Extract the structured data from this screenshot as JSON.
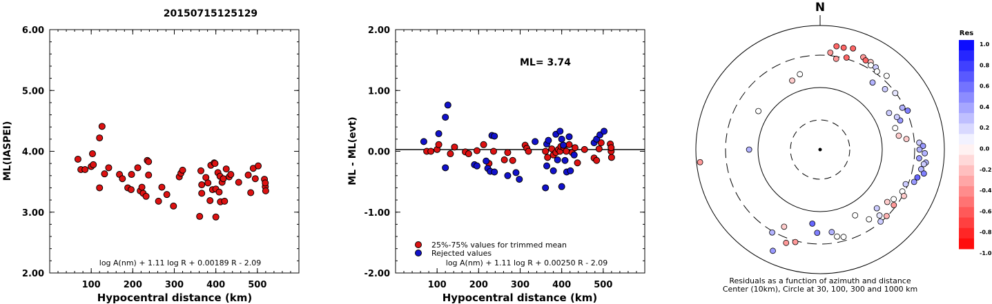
{
  "title": "20150715125129",
  "chart_data": [
    {
      "type": "scatter",
      "ylabel": "ML(IASPEI)",
      "xlabel": "Hypocentral distance (km)",
      "xlim": [
        0,
        600
      ],
      "ylim": [
        2.0,
        6.0
      ],
      "xticks": [
        "100",
        "200",
        "300",
        "400",
        "500"
      ],
      "yticks": [
        "2.00",
        "3.00",
        "4.00",
        "5.00",
        "6.00"
      ],
      "formula": "log A(nm) + 1.11 log R + 0.00189 R - 2.09",
      "color": "#dd1111",
      "points": [
        [
          68,
          3.87
        ],
        [
          75,
          3.7
        ],
        [
          85,
          3.7
        ],
        [
          100,
          3.75
        ],
        [
          103,
          3.96
        ],
        [
          105,
          3.78
        ],
        [
          120,
          4.22
        ],
        [
          126,
          4.41
        ],
        [
          120,
          3.4
        ],
        [
          132,
          3.63
        ],
        [
          142,
          3.73
        ],
        [
          168,
          3.62
        ],
        [
          175,
          3.55
        ],
        [
          188,
          3.4
        ],
        [
          196,
          3.37
        ],
        [
          197,
          3.62
        ],
        [
          212,
          3.73
        ],
        [
          218,
          3.35
        ],
        [
          222,
          3.41
        ],
        [
          225,
          3.31
        ],
        [
          232,
          3.26
        ],
        [
          235,
          3.85
        ],
        [
          238,
          3.83
        ],
        [
          238,
          3.61
        ],
        [
          262,
          3.18
        ],
        [
          270,
          3.41
        ],
        [
          282,
          3.29
        ],
        [
          298,
          3.1
        ],
        [
          312,
          3.58
        ],
        [
          316,
          3.64
        ],
        [
          320,
          3.69
        ],
        [
          361,
          2.93
        ],
        [
          364,
          3.68
        ],
        [
          366,
          3.45
        ],
        [
          366,
          3.31
        ],
        [
          376,
          3.57
        ],
        [
          381,
          3.48
        ],
        [
          386,
          3.19
        ],
        [
          388,
          3.77
        ],
        [
          392,
          3.37
        ],
        [
          396,
          3.81
        ],
        [
          398,
          3.8
        ],
        [
          400,
          3.38
        ],
        [
          400,
          2.92
        ],
        [
          405,
          3.65
        ],
        [
          408,
          3.33
        ],
        [
          410,
          3.59
        ],
        [
          411,
          3.17
        ],
        [
          415,
          3.49
        ],
        [
          418,
          3.55
        ],
        [
          421,
          3.18
        ],
        [
          425,
          3.71
        ],
        [
          432,
          3.58
        ],
        [
          436,
          3.62
        ],
        [
          455,
          3.49
        ],
        [
          478,
          3.61
        ],
        [
          484,
          3.32
        ],
        [
          490,
          3.72
        ],
        [
          495,
          3.55
        ],
        [
          502,
          3.76
        ],
        [
          517,
          3.54
        ],
        [
          519,
          3.42
        ],
        [
          520,
          3.35
        ],
        [
          519,
          3.48
        ]
      ]
    },
    {
      "type": "scatter",
      "ylabel": "ML - ML(evt)",
      "xlabel": "Hypocentral distance (km)",
      "xlim": [
        0,
        600
      ],
      "ylim": [
        -2.0,
        2.0
      ],
      "xticks": [
        "100",
        "200",
        "300",
        "400",
        "500"
      ],
      "yticks": [
        "-2.00",
        "-1.00",
        "0.00",
        "1.00",
        "2.00"
      ],
      "formula": "log A(nm) + 1.11 log R + 0.00250 R - 2.09",
      "annotation": "ML= 3.74",
      "legend": [
        {
          "label": "25%-75% values for trimmed mean",
          "color": "#dd1111"
        },
        {
          "label": "Rejected values",
          "color": "#1111cc"
        }
      ],
      "series": [
        {
          "name": "25%-75% values for trimmed mean",
          "color": "#dd1111",
          "points": [
            [
              75,
              0.0
            ],
            [
              85,
              0.0
            ],
            [
              100,
              0.03
            ],
            [
              104,
              0.11
            ],
            [
              132,
              -0.04
            ],
            [
              142,
              0.07
            ],
            [
              168,
              -0.01
            ],
            [
              176,
              -0.04
            ],
            [
              196,
              0.01
            ],
            [
              212,
              0.11
            ],
            [
              225,
              -0.2
            ],
            [
              236,
              0.0
            ],
            [
              262,
              -0.14
            ],
            [
              270,
              -0.02
            ],
            [
              282,
              -0.15
            ],
            [
              312,
              0.1
            ],
            [
              316,
              0.05
            ],
            [
              320,
              0.0
            ],
            [
              361,
              0.0
            ],
            [
              366,
              -0.1
            ],
            [
              376,
              0.04
            ],
            [
              380,
              -0.06
            ],
            [
              386,
              -0.02
            ],
            [
              392,
              0.03
            ],
            [
              396,
              0.0
            ],
            [
              398,
              0.08
            ],
            [
              405,
              0.06
            ],
            [
              411,
              0.0
            ],
            [
              418,
              0.11
            ],
            [
              425,
              -0.02
            ],
            [
              432,
              0.06
            ],
            [
              438,
              -0.19
            ],
            [
              455,
              0.03
            ],
            [
              478,
              -0.11
            ],
            [
              484,
              -0.15
            ],
            [
              490,
              0.04
            ],
            [
              495,
              0.14
            ],
            [
              517,
              0.12
            ],
            [
              519,
              0.0
            ],
            [
              520,
              -0.1
            ],
            [
              519,
              0.06
            ]
          ]
        },
        {
          "name": "Rejected values",
          "color": "#1111cc",
          "points": [
            [
              68,
              0.16
            ],
            [
              104,
              0.29
            ],
            [
              120,
              0.56
            ],
            [
              126,
              0.76
            ],
            [
              120,
              -0.27
            ],
            [
              190,
              -0.22
            ],
            [
              196,
              -0.24
            ],
            [
              218,
              -0.16
            ],
            [
              222,
              -0.28
            ],
            [
              228,
              -0.33
            ],
            [
              232,
              0.26
            ],
            [
              238,
              0.25
            ],
            [
              238,
              -0.34
            ],
            [
              270,
              -0.4
            ],
            [
              290,
              -0.35
            ],
            [
              298,
              -0.46
            ],
            [
              336,
              0.16
            ],
            [
              361,
              -0.6
            ],
            [
              364,
              0.12
            ],
            [
              364,
              -0.24
            ],
            [
              368,
              0.18
            ],
            [
              380,
              -0.32
            ],
            [
              386,
              0.28
            ],
            [
              390,
              -0.14
            ],
            [
              396,
              0.33
            ],
            [
              400,
              0.2
            ],
            [
              400,
              -0.58
            ],
            [
              404,
              0.1
            ],
            [
              408,
              -0.15
            ],
            [
              412,
              -0.34
            ],
            [
              418,
              0.24
            ],
            [
              421,
              -0.32
            ],
            [
              430,
              -0.06
            ],
            [
              478,
              0.14
            ],
            [
              484,
              0.2
            ],
            [
              492,
              0.27
            ],
            [
              502,
              0.33
            ]
          ]
        }
      ]
    },
    {
      "type": "scatter",
      "subtype": "polar",
      "north_label": "N",
      "caption_line1": "Residuals as a function of azimuth and distance",
      "caption_line2": "Center (10km), Circle at 30, 100, 300 and 1000 km",
      "colorbar_title": "Res",
      "colorbar_ticks": [
        "1.0",
        "0.8",
        "0.6",
        "0.4",
        "0.2",
        "0.0",
        "-0.2",
        "-0.4",
        "-0.6",
        "-0.8",
        "-1.0"
      ],
      "colorbar_range": [
        -1.0,
        1.0
      ],
      "points_az_dist_res": [
        [
          9,
          590,
          -0.6
        ],
        [
          13,
          590,
          -0.6
        ],
        [
          18,
          600,
          -0.6
        ],
        [
          6,
          550,
          -0.4
        ],
        [
          10,
          520,
          -0.4
        ],
        [
          16,
          540,
          -0.6
        ],
        [
          25,
          575,
          -0.4
        ],
        [
          27,
          565,
          -0.6
        ],
        [
          30,
          570,
          -0.2
        ],
        [
          31,
          555,
          0.0
        ],
        [
          34,
          560,
          0.2
        ],
        [
          36,
          545,
          0.0
        ],
        [
          42,
          560,
          0.0
        ],
        [
          38,
          480,
          0.3
        ],
        [
          47,
          500,
          0.2
        ],
        [
          53,
          530,
          0.1
        ],
        [
          62,
          440,
          0.2
        ],
        [
          63,
          520,
          0.3
        ],
        [
          66,
          540,
          0.5
        ],
        [
          70,
          480,
          0.4
        ],
        [
          67,
          470,
          0.2
        ],
        [
          74,
          440,
          0.0
        ],
        [
          80,
          450,
          -0.2
        ],
        [
          83,
          490,
          -0.2
        ],
        [
          86,
          560,
          0.2
        ],
        [
          88,
          580,
          0.4
        ],
        [
          90,
          560,
          0.3
        ],
        [
          92,
          590,
          0.3
        ],
        [
          95,
          560,
          0.4
        ],
        [
          97,
          600,
          0.3
        ],
        [
          98,
          590,
          0.2
        ],
        [
          101,
          580,
          0.3
        ],
        [
          103,
          600,
          0.5
        ],
        [
          106,
          570,
          0.6
        ],
        [
          109,
          560,
          0.4
        ],
        [
          112,
          520,
          0.2
        ],
        [
          117,
          520,
          0.0
        ],
        [
          119,
          540,
          -0.2
        ],
        [
          124,
          500,
          0.0
        ],
        [
          127,
          520,
          -0.4
        ],
        [
          128,
          480,
          -0.2
        ],
        [
          135,
          530,
          -0.3
        ],
        [
          136,
          460,
          0.2
        ],
        [
          138,
          500,
          0.1
        ],
        [
          140,
          530,
          0.2
        ],
        [
          145,
          480,
          0.0
        ],
        [
          152,
          420,
          0.0
        ],
        [
          165,
          510,
          0.0
        ],
        [
          169,
          500,
          0.0
        ],
        [
          172,
          470,
          0.3
        ],
        [
          182,
          470,
          0.5
        ],
        [
          186,
          420,
          0.6
        ],
        [
          195,
          540,
          -0.4
        ],
        [
          200,
          560,
          -0.4
        ],
        [
          205,
          480,
          -0.2
        ],
        [
          210,
          540,
          0.3
        ],
        [
          205,
          630,
          0.4
        ],
        [
          264,
          680,
          -0.4
        ],
        [
          270,
          400,
          0.3
        ],
        [
          302,
          410,
          0.0
        ],
        [
          338,
          420,
          -0.2
        ],
        [
          345,
          440,
          0.0
        ]
      ]
    }
  ]
}
